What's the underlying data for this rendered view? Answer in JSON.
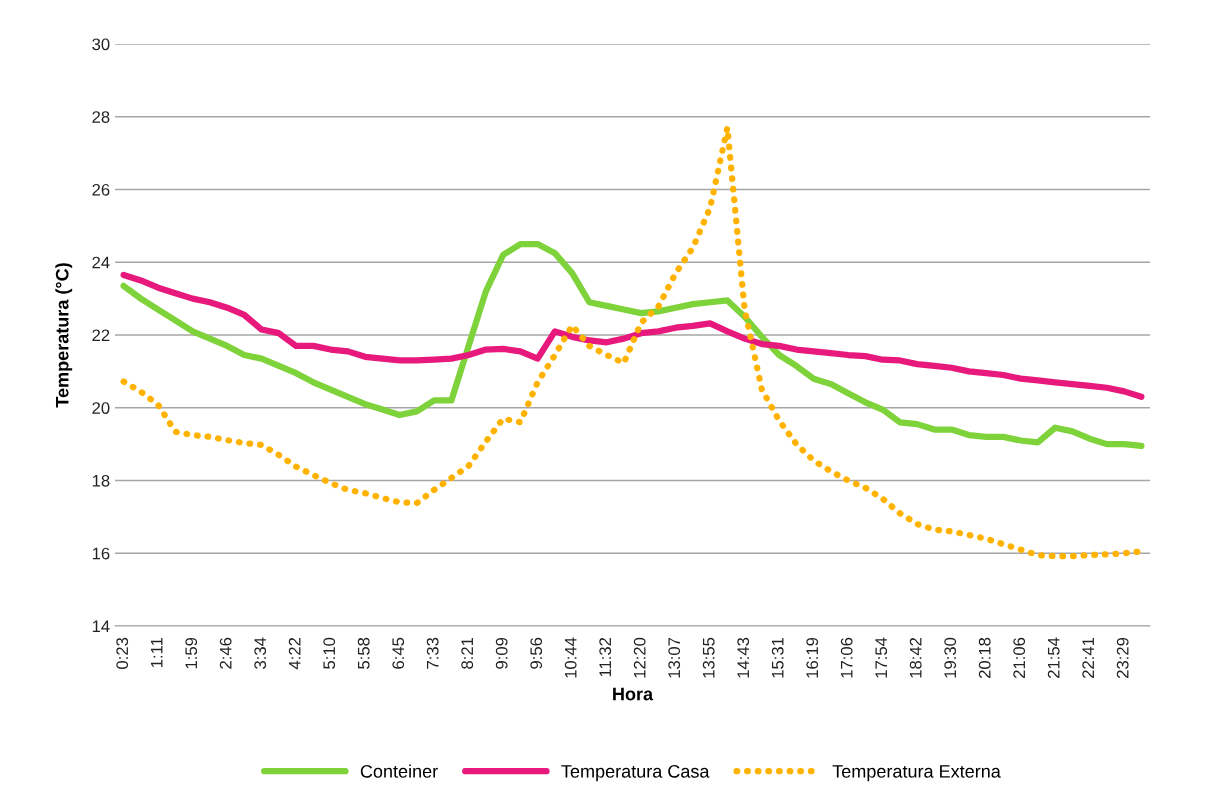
{
  "chart_data": {
    "type": "line",
    "xlabel": "Hora",
    "ylabel": "Temperatura (°C)",
    "categories": [
      "0:23",
      null,
      "1:11",
      null,
      "1:59",
      null,
      "2:46",
      null,
      "3:34",
      null,
      "4:22",
      null,
      "5:10",
      null,
      "5:58",
      null,
      "6:45",
      null,
      "7:33",
      null,
      "8:21",
      null,
      "9:09",
      null,
      "9:56",
      null,
      "10:44",
      null,
      "11:32",
      null,
      "12:20",
      null,
      "13:07",
      null,
      "13:55",
      null,
      "14:43",
      null,
      "15:31",
      null,
      "16:19",
      null,
      "17:06",
      null,
      "17:54",
      null,
      "18:42",
      null,
      "19:30",
      null,
      "20:18",
      null,
      "21:06",
      null,
      "21:54",
      null,
      "22:41",
      null,
      "23:29",
      null
    ],
    "series": [
      {
        "name": "Conteiner",
        "color": "#7ed23a",
        "line_style": "solid",
        "values": [
          23.35,
          23.0,
          22.7,
          22.4,
          22.1,
          21.9,
          21.7,
          21.45,
          21.35,
          21.15,
          20.95,
          20.7,
          20.5,
          20.3,
          20.1,
          19.95,
          19.8,
          19.9,
          20.2,
          20.2,
          21.7,
          23.2,
          24.2,
          24.5,
          24.5,
          24.25,
          23.7,
          22.9,
          22.8,
          22.7,
          22.6,
          22.65,
          22.75,
          22.85,
          22.9,
          22.95,
          22.5,
          21.95,
          21.45,
          21.15,
          20.8,
          20.65,
          20.4,
          20.15,
          19.95,
          19.6,
          19.55,
          19.4,
          19.4,
          19.25,
          19.2,
          19.2,
          19.1,
          19.05,
          19.45,
          19.35,
          19.15,
          19.0,
          19.0,
          18.95
        ]
      },
      {
        "name": "Temperatura Casa",
        "color": "#e8197d",
        "line_style": "solid",
        "values": [
          23.65,
          23.5,
          23.3,
          23.15,
          23.0,
          22.9,
          22.75,
          22.55,
          22.15,
          22.05,
          21.7,
          21.7,
          21.6,
          21.55,
          21.4,
          21.35,
          21.3,
          21.3,
          21.32,
          21.35,
          21.45,
          21.6,
          21.62,
          21.55,
          21.35,
          22.1,
          21.95,
          21.85,
          21.8,
          21.9,
          22.05,
          22.1,
          22.2,
          22.25,
          22.32,
          22.1,
          21.9,
          21.75,
          21.7,
          21.6,
          21.55,
          21.5,
          21.45,
          21.42,
          21.32,
          21.3,
          21.2,
          21.15,
          21.1,
          21.0,
          20.95,
          20.9,
          20.8,
          20.75,
          20.7,
          20.65,
          20.6,
          20.55,
          20.45,
          20.3
        ]
      },
      {
        "name": "Temperatura Externa",
        "color": "#ffb300",
        "line_style": "dotted",
        "values": [
          20.72,
          20.44,
          20.08,
          19.34,
          19.25,
          19.2,
          19.11,
          19.03,
          18.98,
          18.7,
          18.38,
          18.15,
          17.93,
          17.74,
          17.65,
          17.52,
          17.4,
          17.38,
          17.74,
          18.07,
          18.4,
          19.07,
          19.7,
          19.6,
          20.7,
          21.45,
          22.26,
          21.7,
          21.45,
          21.23,
          22.34,
          22.78,
          23.7,
          24.4,
          25.5,
          27.7,
          22.7,
          20.5,
          19.65,
          19.0,
          18.55,
          18.25,
          18.0,
          17.8,
          17.5,
          17.1,
          16.8,
          16.65,
          16.6,
          16.5,
          16.4,
          16.25,
          16.1,
          15.95,
          15.92,
          15.92,
          15.95,
          15.97,
          16.0,
          16.05
        ]
      }
    ],
    "ylim": [
      14,
      30
    ],
    "yticks": [
      14,
      16,
      18,
      20,
      22,
      24,
      26,
      28,
      30
    ],
    "grid": "y",
    "legend": "bottom",
    "marker": "none"
  }
}
